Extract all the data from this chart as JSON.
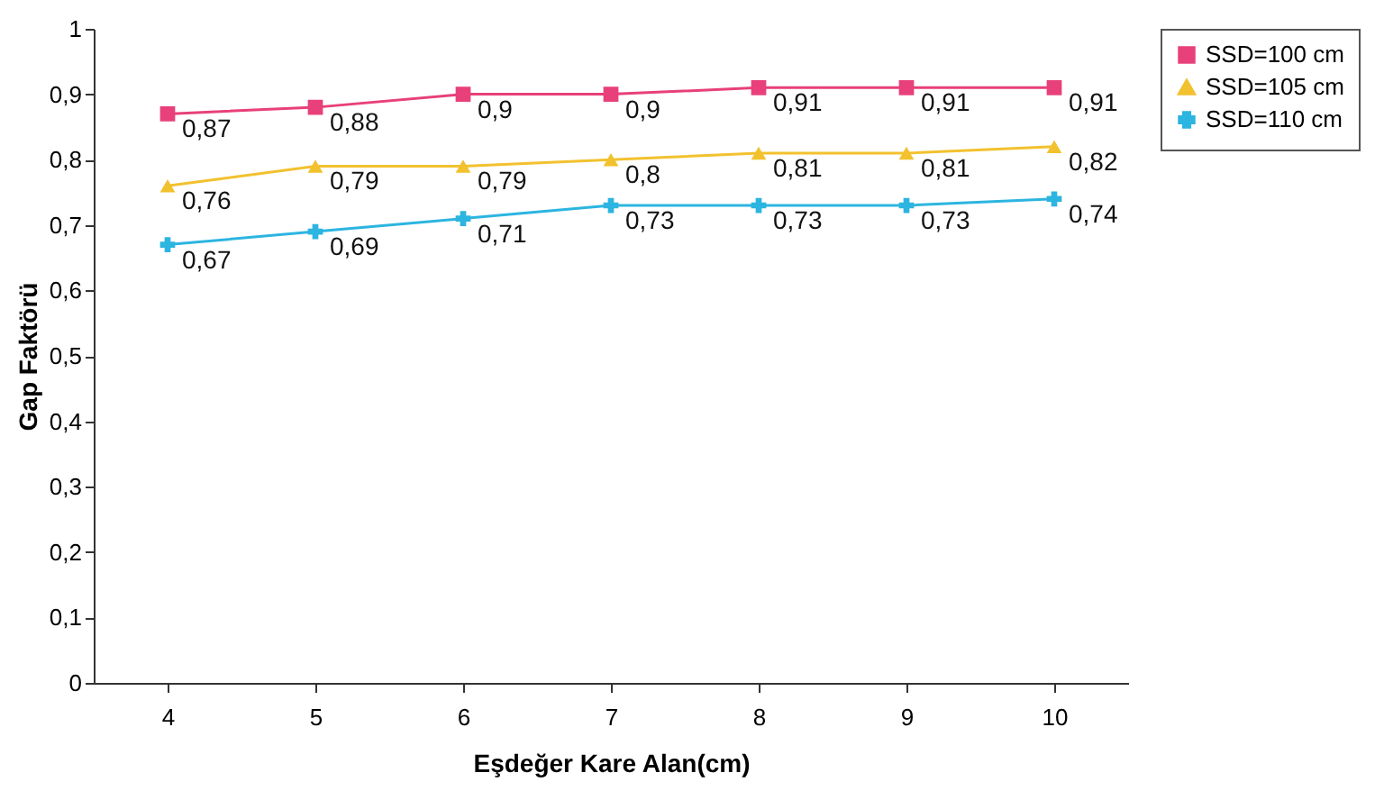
{
  "chart_data": {
    "type": "line",
    "xlabel": "Eşdeğer Kare Alan(cm)",
    "ylabel": "Gap Faktörü",
    "categories": [
      "4",
      "5",
      "6",
      "7",
      "8",
      "9",
      "10"
    ],
    "ylim": [
      0,
      1
    ],
    "yticks": [
      0,
      {
        "value": 0.1,
        "label": "0,1"
      },
      {
        "value": 0.2,
        "label": "0,2"
      },
      {
        "value": 0.3,
        "label": "0,3"
      },
      {
        "value": 0.4,
        "label": "0,4"
      },
      {
        "value": 0.5,
        "label": "0,5"
      },
      {
        "value": 0.6,
        "label": "0,6"
      },
      {
        "value": 0.7,
        "label": "0,7"
      },
      {
        "value": 0.8,
        "label": "0,8"
      },
      {
        "value": 0.9,
        "label": "0,9"
      },
      1
    ],
    "series": [
      {
        "name": "SSD=100 cm",
        "color": "#e8407a",
        "marker": "square",
        "values": [
          0.87,
          0.88,
          0.9,
          0.9,
          0.91,
          0.91,
          0.91
        ],
        "value_labels": [
          "0,87",
          "0,88",
          "0,9",
          "0,9",
          "0,91",
          "0,91",
          "0,91"
        ]
      },
      {
        "name": "SSD=105 cm",
        "color": "#f2c12e",
        "marker": "triangle",
        "values": [
          0.76,
          0.79,
          0.79,
          0.8,
          0.81,
          0.81,
          0.82
        ],
        "value_labels": [
          "0,76",
          "0,79",
          "0,79",
          "0,8",
          "0,81",
          "0,81",
          "0,82"
        ]
      },
      {
        "name": "SSD=110 cm",
        "color": "#2cb5e0",
        "marker": "cross",
        "values": [
          0.67,
          0.69,
          0.71,
          0.73,
          0.73,
          0.73,
          0.74
        ],
        "value_labels": [
          "0,67",
          "0,69",
          "0,71",
          "0,73",
          "0,73",
          "0,73",
          "0,74"
        ]
      }
    ],
    "legend": "right",
    "grid": false
  }
}
